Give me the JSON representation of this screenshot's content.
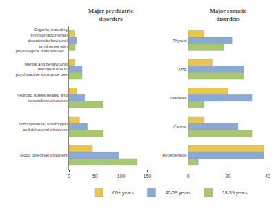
{
  "chart_data": [
    {
      "type": "bar",
      "orientation": "horizontal",
      "title": "Major psychiatric\ndisorders",
      "categories": [
        "Organic, including\nsymptomatic/mental\ndisorders/behavioural\nsyndromes with\nphysiological disturbances...",
        "Mental and behavioural\ndisorders due to\npsychoactive substance use",
        "Neurotic, stress-related and\nsomatoform disorders",
        "Schizophrenia, schizotypal\nand delusional disorders",
        "Mood [affective] disorders"
      ],
      "series": [
        {
          "name": "60+ years",
          "color": "#E8C84A",
          "values": [
            10,
            10,
            15,
            20,
            45
          ]
        },
        {
          "name": "40-59 years",
          "color": "#8AAAD4",
          "values": [
            15,
            25,
            30,
            35,
            95
          ]
        },
        {
          "name": "18-39 years",
          "color": "#A8C870",
          "values": [
            12,
            25,
            65,
            65,
            130
          ]
        }
      ],
      "xlim": [
        0,
        160
      ],
      "xticks": [
        0,
        50,
        100,
        150
      ],
      "grid": false,
      "legend": "bottom"
    },
    {
      "type": "bar",
      "orientation": "horizontal",
      "title": "Major somatic\ndisorders",
      "categories": [
        "Thyroid",
        "APD",
        "Diabetes",
        "Cancer",
        "Hypertension"
      ],
      "series": [
        {
          "name": "60+ years",
          "color": "#E8C84A",
          "values": [
            8,
            12,
            20,
            8,
            38
          ]
        },
        {
          "name": "40-59 years",
          "color": "#8AAAD4",
          "values": [
            22,
            28,
            32,
            25,
            38
          ]
        },
        {
          "name": "18-39 years",
          "color": "#A8C870",
          "values": [
            18,
            28,
            8,
            32,
            5
          ]
        }
      ],
      "xlim": [
        0,
        40
      ],
      "xticks": [
        0,
        20,
        40
      ],
      "grid": false,
      "legend": "bottom"
    }
  ]
}
